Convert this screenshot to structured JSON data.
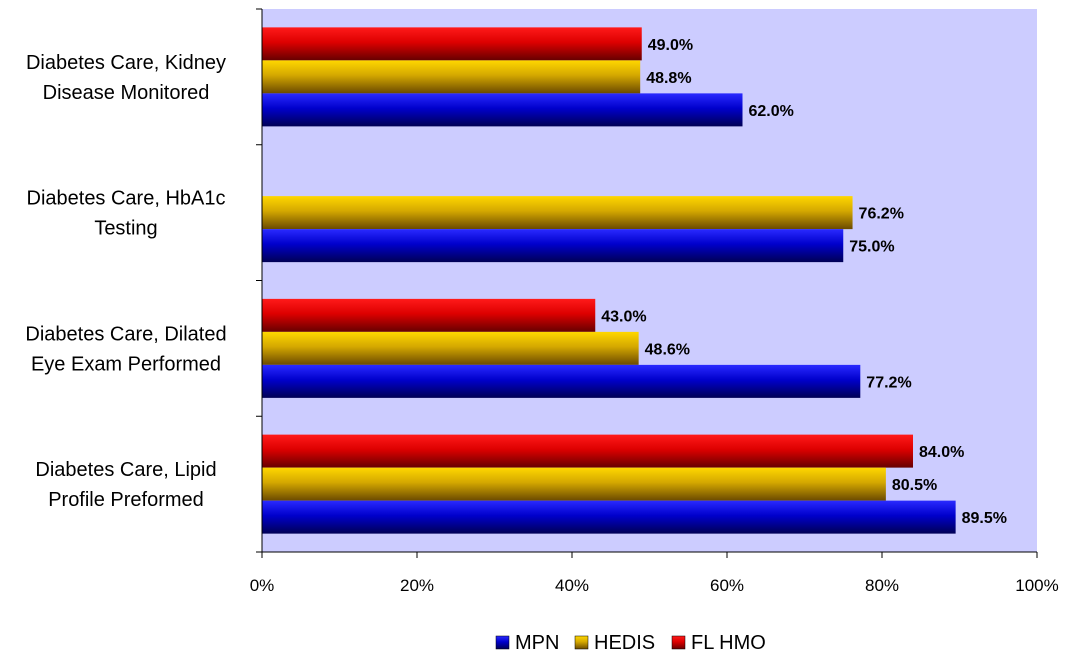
{
  "chart_data": {
    "type": "bar",
    "orientation": "horizontal",
    "categories": [
      [
        "Diabetes Care, Kidney",
        "Disease Monitored"
      ],
      [
        "Diabetes Care, HbA1c",
        "Testing"
      ],
      [
        "Diabetes Care, Dilated",
        "Eye Exam Performed"
      ],
      [
        "Diabetes Care, Lipid",
        "Profile Preformed"
      ]
    ],
    "series": [
      {
        "name": "MPN",
        "color": "#0000cc",
        "values": [
          62.0,
          75.0,
          77.2,
          89.5
        ],
        "labels": [
          "62.0%",
          "75.0%",
          "77.2%",
          "89.5%"
        ]
      },
      {
        "name": "HEDIS",
        "color": "#d4a800",
        "values": [
          48.8,
          76.2,
          48.6,
          80.5
        ],
        "labels": [
          "48.8%",
          "76.2%",
          "48.6%",
          "80.5%"
        ]
      },
      {
        "name": "FL HMO",
        "color": "#e00000",
        "values": [
          49.0,
          null,
          43.0,
          84.0
        ],
        "labels": [
          "49.0%",
          "",
          "43.0%",
          "84.0%"
        ]
      }
    ],
    "xlim": [
      0,
      100
    ],
    "xticks": [
      "0%",
      "20%",
      "40%",
      "60%",
      "80%",
      "100%"
    ],
    "xtick_values": [
      0,
      20,
      40,
      60,
      80,
      100
    ],
    "plot_background": "#ccccff",
    "grid": false,
    "legend_position": "bottom"
  }
}
